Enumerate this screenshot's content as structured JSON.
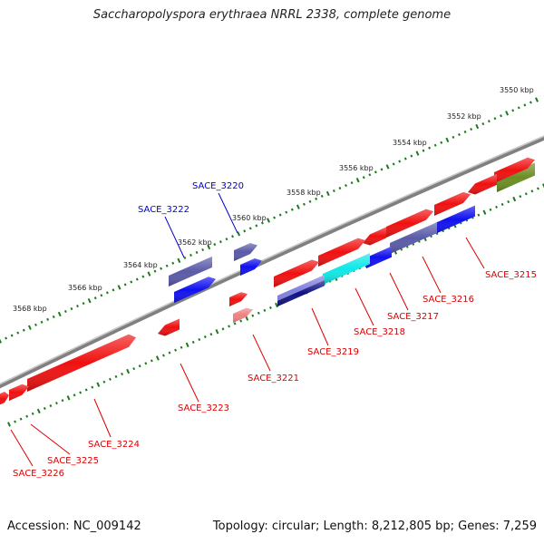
{
  "title": "Saccharopolyspora erythraea NRRL 2338, complete genome",
  "footer": {
    "accession": "Accession: NC_009142",
    "summary": "Topology: circular; Length: 8,212,805 bp; Genes: 7,259"
  },
  "colors": {
    "backbone": "#808080",
    "tick": "#1a7a1a",
    "label_red": "#dd0000",
    "label_blue": "#0000cc",
    "gene_red": "#f01010",
    "gene_blue": "#1010f0",
    "gene_slate": "#5a5aa8",
    "gene_cyan": "#10e8e8",
    "gene_navy": "#101080",
    "gene_olive": "#6b8e23",
    "gene_pink": "#f08080",
    "gene_periwinkle": "#8080e0"
  },
  "scale_ticks": [
    "3550 kbp",
    "3552 kbp",
    "3554 kbp",
    "3556 kbp",
    "3558 kbp",
    "3560 kbp",
    "3562 kbp",
    "3564 kbp",
    "3566 kbp",
    "3568 kbp"
  ],
  "gene_labels": [
    {
      "name": "SACE_3215",
      "color": "red"
    },
    {
      "name": "SACE_3216",
      "color": "red"
    },
    {
      "name": "SACE_3217",
      "color": "red"
    },
    {
      "name": "SACE_3218",
      "color": "red"
    },
    {
      "name": "SACE_3219",
      "color": "red"
    },
    {
      "name": "SACE_3220",
      "color": "blue"
    },
    {
      "name": "SACE_3221",
      "color": "red"
    },
    {
      "name": "SACE_3222",
      "color": "blue"
    },
    {
      "name": "SACE_3223",
      "color": "red"
    },
    {
      "name": "SACE_3224",
      "color": "red"
    },
    {
      "name": "SACE_3225",
      "color": "red"
    },
    {
      "name": "SACE_3226",
      "color": "red"
    }
  ]
}
